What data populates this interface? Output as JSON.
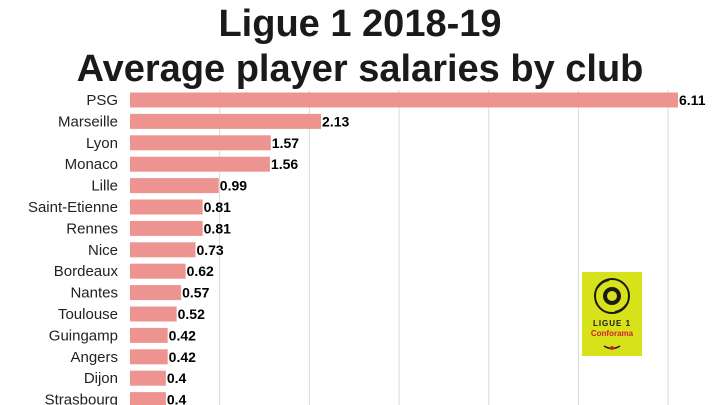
{
  "chart_data": {
    "type": "bar",
    "orientation": "horizontal",
    "title_line1": "Ligue 1 2018-19",
    "title_line2": "Average player salaries by club",
    "categories": [
      "PSG",
      "Marseille",
      "Lyon",
      "Monaco",
      "Lille",
      "Saint-Etienne",
      "Rennes",
      "Nice",
      "Bordeaux",
      "Nantes",
      "Toulouse",
      "Guingamp",
      "Angers",
      "Dijon",
      "Strasbourg"
    ],
    "values": [
      6.11,
      2.13,
      1.57,
      1.56,
      0.99,
      0.81,
      0.81,
      0.73,
      0.62,
      0.57,
      0.52,
      0.42,
      0.42,
      0.4,
      0.4
    ],
    "value_labels": [
      "6.11",
      "2.13",
      "1.57",
      "1.56",
      "0.99",
      "0.81",
      "0.81",
      "0.73",
      "0.62",
      "0.57",
      "0.52",
      "0.42",
      "0.42",
      "0.4",
      "0.4"
    ],
    "xlim": [
      0,
      6.11
    ],
    "gridlines_x": [
      1,
      2,
      3,
      4,
      5,
      6
    ],
    "grid": true,
    "bar_color": "#ee9490",
    "grid_color": "#d9d9d9"
  },
  "logo": {
    "line1": "LIGUE 1",
    "line2": "Conforama",
    "background": "#d8e21a",
    "accent": "#d2232a"
  }
}
